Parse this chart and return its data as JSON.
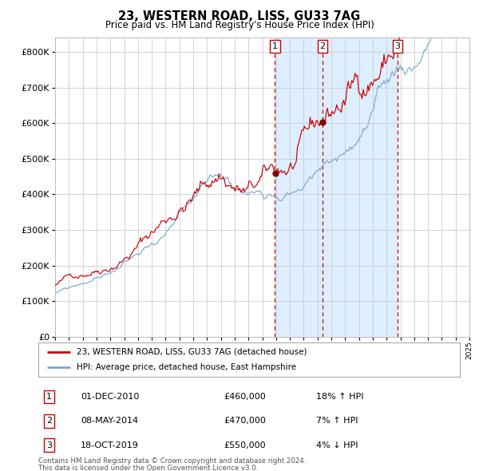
{
  "title": "23, WESTERN ROAD, LISS, GU33 7AG",
  "subtitle": "Price paid vs. HM Land Registry's House Price Index (HPI)",
  "legend_line1": "23, WESTERN ROAD, LISS, GU33 7AG (detached house)",
  "legend_line2": "HPI: Average price, detached house, East Hampshire",
  "footer1": "Contains HM Land Registry data © Crown copyright and database right 2024.",
  "footer2": "This data is licensed under the Open Government Licence v3.0.",
  "transactions": [
    {
      "id": 1,
      "date": "01-DEC-2010",
      "price": "£460,000",
      "hpi": "18% ↑ HPI",
      "x_year": 2010.92,
      "price_val": 460000
    },
    {
      "id": 2,
      "date": "08-MAY-2014",
      "price": "£470,000",
      "hpi": "7% ↑ HPI",
      "x_year": 2014.37,
      "price_val": 470000
    },
    {
      "id": 3,
      "date": "18-OCT-2019",
      "price": "£550,000",
      "hpi": "4% ↓ HPI",
      "x_year": 2019.79,
      "price_val": 550000
    }
  ],
  "red_line_color": "#cc0000",
  "blue_line_color": "#7aaacc",
  "shade_color": "#ddeeff",
  "vline_color": "#cc0000",
  "dot_color": "#880000",
  "grid_color": "#cccccc",
  "bg_color": "#ffffff",
  "ylim": [
    0,
    840000
  ],
  "xlim_start": 1995,
  "xlim_end": 2025,
  "yticks": [
    0,
    100000,
    200000,
    300000,
    400000,
    500000,
    600000,
    700000,
    800000
  ]
}
